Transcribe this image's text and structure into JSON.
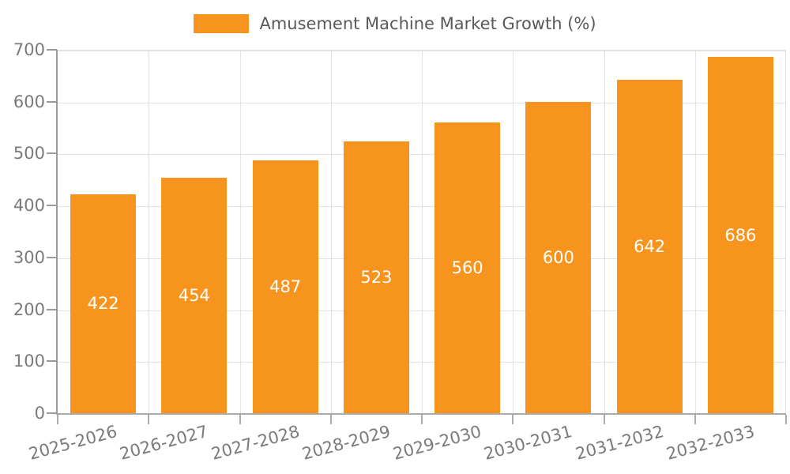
{
  "chart_data": {
    "type": "bar",
    "title": "Amusement Machine Market Growth (%)",
    "categories": [
      "2025-2026",
      "2026-2027",
      "2027-2028",
      "2028-2029",
      "2029-2030",
      "2030-2031",
      "2031-2032",
      "2032-2033"
    ],
    "values": [
      422,
      454,
      487,
      523,
      560,
      600,
      642,
      686
    ],
    "xlabel": "",
    "ylabel": "",
    "ylim": [
      0,
      700
    ],
    "yticks": [
      0,
      100,
      200,
      300,
      400,
      500,
      600,
      700
    ],
    "grid": true,
    "legend": [
      "Amusement Machine Market Growth (%)"
    ],
    "legend_position": "top-center",
    "value_labels": "inside-center"
  },
  "colors": {
    "bar": "#F7941E",
    "value_label": "#FFFFFF",
    "grid_line": "#E2E2E2",
    "axis_line_left": "#9A9A9A",
    "axis_line_bottom": "#ABABAB",
    "tick_label": "#7A7A7A",
    "legend_text": "#595959",
    "background": "#FFFFFF"
  }
}
